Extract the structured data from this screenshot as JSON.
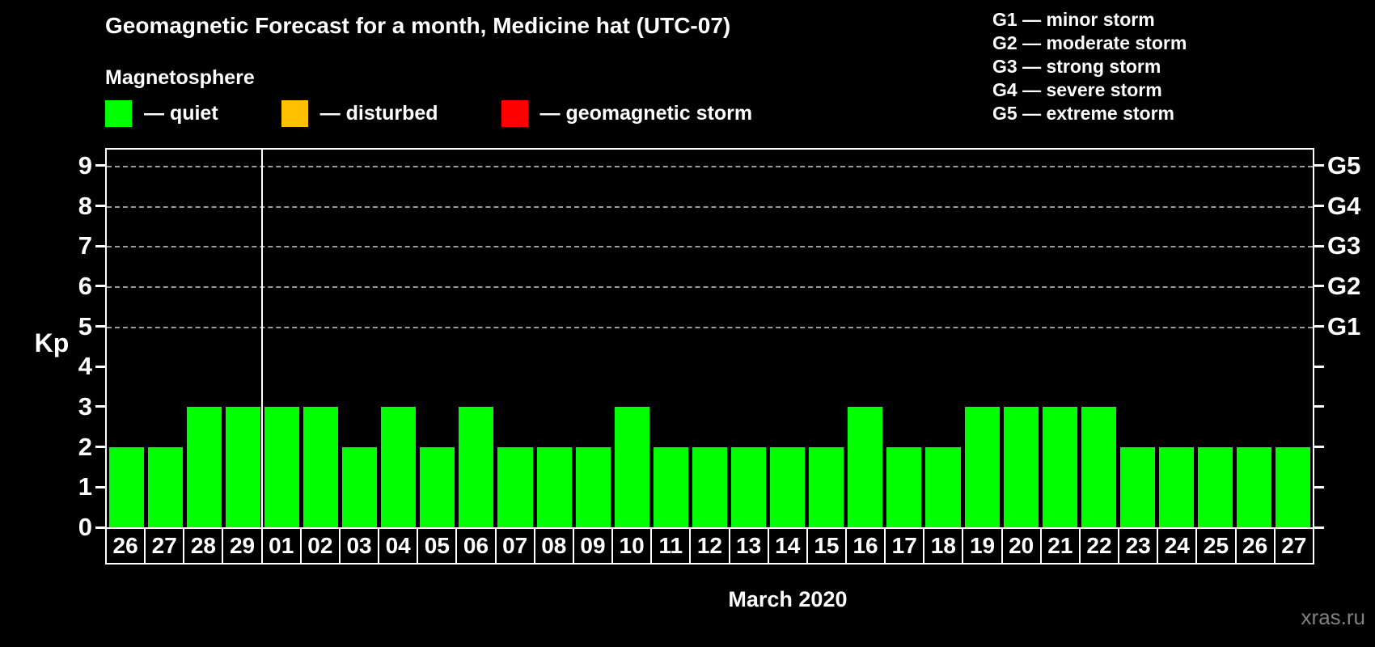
{
  "title": "Geomagnetic Forecast for a month, Medicine hat (UTC-07)",
  "subtitle": "Magnetosphere",
  "kp_legend": [
    {
      "name": "quiet",
      "label": "— quiet",
      "color": "#00ff00"
    },
    {
      "name": "disturbed",
      "label": "— disturbed",
      "color": "#ffc000"
    },
    {
      "name": "storm",
      "label": "— geomagnetic storm",
      "color": "#ff0000"
    }
  ],
  "g_scale_legend": [
    "G1 — minor storm",
    "G2 — moderate storm",
    "G3 — strong storm",
    "G4 — severe storm",
    "G5 — extreme storm"
  ],
  "watermark": "xras.ru",
  "colors": {
    "background": "#000000",
    "text": "#ffffff",
    "grid": "#9b9b9b",
    "axis": "#ffffff",
    "quiet": "#00ff00",
    "disturbed": "#ffc000",
    "storm": "#ff0000",
    "watermark": "#808080"
  },
  "chart_data": {
    "type": "bar",
    "title": "Geomagnetic Forecast for a month, Medicine hat (UTC-07)",
    "xlabel": "March 2020",
    "ylabel": "Kp",
    "ylim": [
      0,
      9.4
    ],
    "yticks": [
      0,
      1,
      2,
      3,
      4,
      5,
      6,
      7,
      8,
      9
    ],
    "grid_levels": [
      5,
      6,
      7,
      8,
      9
    ],
    "grid": true,
    "legend_position": "top-left",
    "right_axis": [
      {
        "label": "G1",
        "level": 5
      },
      {
        "label": "G2",
        "level": 6
      },
      {
        "label": "G3",
        "level": 7
      },
      {
        "label": "G4",
        "level": 8
      },
      {
        "label": "G5",
        "level": 9
      }
    ],
    "categories": [
      "26",
      "27",
      "28",
      "29",
      "01",
      "02",
      "03",
      "04",
      "05",
      "06",
      "07",
      "08",
      "09",
      "10",
      "11",
      "12",
      "13",
      "14",
      "15",
      "16",
      "17",
      "18",
      "19",
      "20",
      "21",
      "22",
      "23",
      "24",
      "25",
      "26",
      "27"
    ],
    "values": [
      2,
      2,
      3,
      3,
      3,
      3,
      2,
      3,
      2,
      3,
      2,
      2,
      2,
      3,
      2,
      2,
      2,
      2,
      2,
      3,
      2,
      2,
      3,
      3,
      3,
      3,
      2,
      2,
      2,
      2,
      2
    ],
    "bar_color": "#00ff00",
    "month_separator_after": "29",
    "separator_index": 4
  }
}
